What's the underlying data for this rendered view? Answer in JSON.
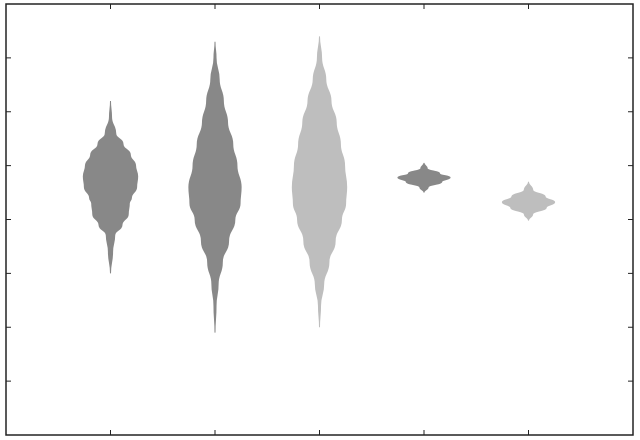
{
  "chart_data": {
    "type": "violin",
    "title": "",
    "xlabel": "",
    "ylabel": "",
    "x_positions": [
      1,
      2,
      3,
      4,
      5
    ],
    "xlim": [
      0,
      6
    ],
    "ylim": [
      0,
      8
    ],
    "xticks": [
      1,
      2,
      3,
      4,
      5
    ],
    "yticks": [
      1,
      2,
      3,
      4,
      5,
      6,
      7
    ],
    "grid": false,
    "legend": "none",
    "colors": {
      "dark": "#888888",
      "light": "#bebebe",
      "frame": "#222222"
    },
    "violins": [
      {
        "x": 1,
        "color": "dark",
        "profile": [
          [
            6.2,
            0.0
          ],
          [
            5.9,
            0.01
          ],
          [
            5.6,
            0.05
          ],
          [
            5.4,
            0.12
          ],
          [
            5.2,
            0.19
          ],
          [
            5.0,
            0.24
          ],
          [
            4.8,
            0.26
          ],
          [
            4.6,
            0.25
          ],
          [
            4.4,
            0.2
          ],
          [
            4.3,
            0.18
          ],
          [
            4.1,
            0.17
          ],
          [
            3.9,
            0.11
          ],
          [
            3.7,
            0.04
          ],
          [
            3.4,
            0.02
          ],
          [
            3.0,
            0.0
          ]
        ]
      },
      {
        "x": 2,
        "color": "dark",
        "profile": [
          [
            7.3,
            0.0
          ],
          [
            7.0,
            0.01
          ],
          [
            6.6,
            0.04
          ],
          [
            6.2,
            0.08
          ],
          [
            5.8,
            0.12
          ],
          [
            5.4,
            0.17
          ],
          [
            5.0,
            0.21
          ],
          [
            4.6,
            0.25
          ],
          [
            4.3,
            0.24
          ],
          [
            4.0,
            0.19
          ],
          [
            3.6,
            0.13
          ],
          [
            3.2,
            0.07
          ],
          [
            2.8,
            0.03
          ],
          [
            2.4,
            0.01
          ],
          [
            1.9,
            0.0
          ]
        ]
      },
      {
        "x": 3,
        "color": "light",
        "profile": [
          [
            7.4,
            0.0
          ],
          [
            7.0,
            0.02
          ],
          [
            6.6,
            0.06
          ],
          [
            6.2,
            0.11
          ],
          [
            5.8,
            0.16
          ],
          [
            5.4,
            0.2
          ],
          [
            5.0,
            0.24
          ],
          [
            4.6,
            0.26
          ],
          [
            4.3,
            0.25
          ],
          [
            4.0,
            0.21
          ],
          [
            3.6,
            0.15
          ],
          [
            3.2,
            0.09
          ],
          [
            2.8,
            0.04
          ],
          [
            2.4,
            0.01
          ],
          [
            2.0,
            0.0
          ]
        ]
      },
      {
        "x": 4,
        "color": "dark",
        "profile": [
          [
            5.05,
            0.0
          ],
          [
            4.95,
            0.03
          ],
          [
            4.85,
            0.15
          ],
          [
            4.78,
            0.25
          ],
          [
            4.7,
            0.17
          ],
          [
            4.6,
            0.04
          ],
          [
            4.5,
            0.0
          ]
        ]
      },
      {
        "x": 5,
        "color": "light",
        "profile": [
          [
            4.7,
            0.0
          ],
          [
            4.55,
            0.04
          ],
          [
            4.42,
            0.16
          ],
          [
            4.32,
            0.25
          ],
          [
            4.22,
            0.17
          ],
          [
            4.1,
            0.04
          ],
          [
            3.98,
            0.0
          ]
        ]
      }
    ]
  }
}
